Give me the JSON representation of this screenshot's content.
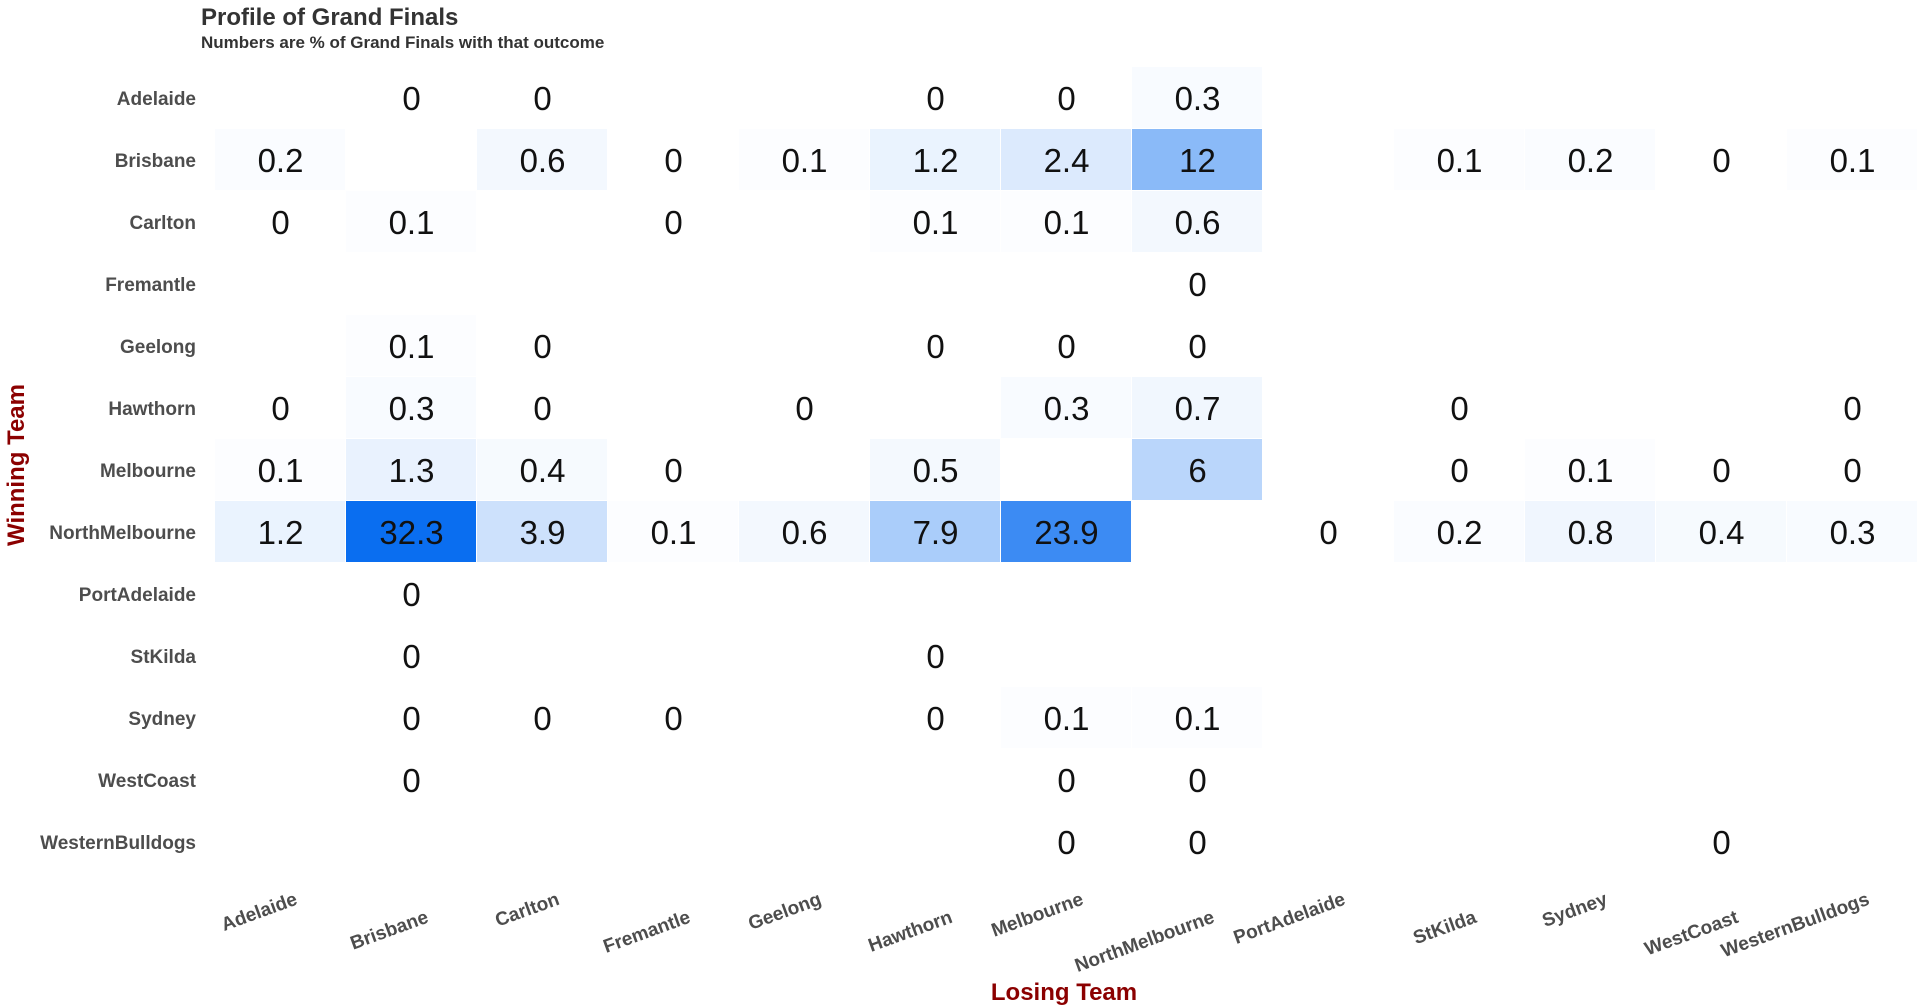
{
  "chart_data": {
    "type": "heatmap",
    "title": "Profile of Grand Finals",
    "subtitle": "Numbers are % of Grand Finals with that outcome",
    "xlabel": "Losing Team",
    "ylabel": "Winning Team",
    "rows": [
      "Adelaide",
      "Brisbane",
      "Carlton",
      "Fremantle",
      "Geelong",
      "Hawthorn",
      "Melbourne",
      "NorthMelbourne",
      "PortAdelaide",
      "StKilda",
      "Sydney",
      "WestCoast",
      "WesternBulldogs"
    ],
    "columns": [
      "Adelaide",
      "Brisbane",
      "Carlton",
      "Fremantle",
      "Geelong",
      "Hawthorn",
      "Melbourne",
      "NorthMelbourne",
      "PortAdelaide",
      "StKilda",
      "Sydney",
      "WestCoast",
      "WesternBulldogs"
    ],
    "values": [
      [
        null,
        0,
        0,
        null,
        null,
        0,
        0,
        0.3,
        null,
        null,
        null,
        null,
        null
      ],
      [
        0.2,
        null,
        0.6,
        0,
        0.1,
        1.2,
        2.4,
        12,
        null,
        0.1,
        0.2,
        0,
        0.1
      ],
      [
        0,
        0.1,
        null,
        0,
        null,
        0.1,
        0.1,
        0.6,
        null,
        null,
        null,
        null,
        null
      ],
      [
        null,
        null,
        null,
        null,
        null,
        null,
        null,
        0,
        null,
        null,
        null,
        null,
        null
      ],
      [
        null,
        0.1,
        0,
        null,
        null,
        0,
        0,
        0,
        null,
        null,
        null,
        null,
        null
      ],
      [
        0,
        0.3,
        0,
        null,
        0,
        null,
        0.3,
        0.7,
        null,
        0,
        null,
        null,
        0
      ],
      [
        0.1,
        1.3,
        0.4,
        0,
        null,
        0.5,
        null,
        6,
        null,
        0,
        0.1,
        0,
        0
      ],
      [
        1.2,
        32.3,
        3.9,
        0.1,
        0.6,
        7.9,
        23.9,
        null,
        0,
        0.2,
        0.8,
        0.4,
        0.3
      ],
      [
        null,
        0,
        null,
        null,
        null,
        null,
        null,
        null,
        null,
        null,
        null,
        null,
        null
      ],
      [
        null,
        0,
        null,
        null,
        null,
        0,
        null,
        null,
        null,
        null,
        null,
        null,
        null
      ],
      [
        null,
        0,
        0,
        0,
        null,
        0,
        0.1,
        0.1,
        null,
        null,
        null,
        null,
        null
      ],
      [
        null,
        0,
        null,
        null,
        null,
        null,
        0,
        0,
        null,
        null,
        null,
        null,
        null
      ],
      [
        null,
        null,
        null,
        null,
        null,
        null,
        0,
        0,
        null,
        null,
        null,
        0,
        null
      ]
    ],
    "color_low": "#ffffff",
    "color_high": "#0a6ef0",
    "grid": false,
    "legend": "none"
  }
}
